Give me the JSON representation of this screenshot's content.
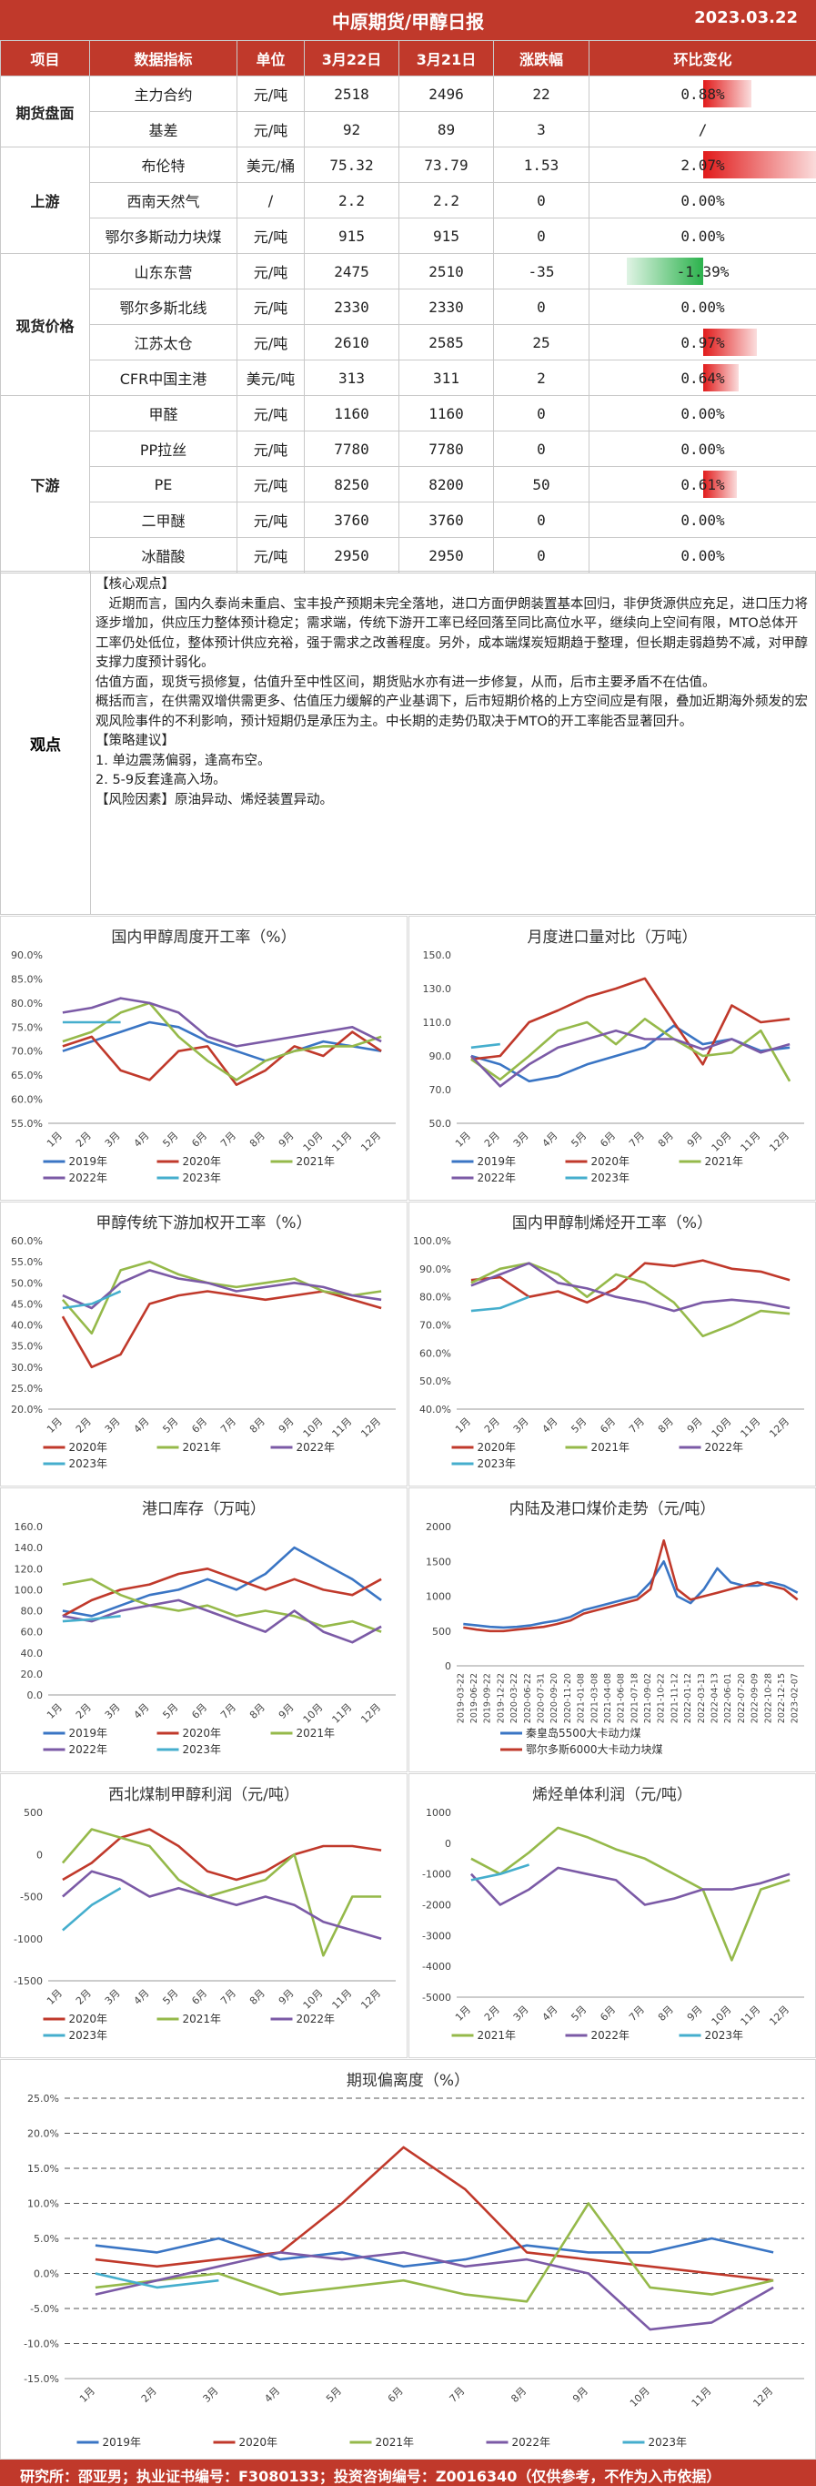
{
  "header": {
    "title": "中原期货/甲醇日报",
    "date": "2023.03.22"
  },
  "table": {
    "columns": [
      "项目",
      "数据指标",
      "单位",
      "3月22日",
      "3月21日",
      "涨跌幅",
      "环比变化"
    ],
    "groups": [
      {
        "name": "期货盘面",
        "rows": [
          {
            "indicator": "主力合约",
            "unit": "元/吨",
            "d1": "2518",
            "d2": "2496",
            "diff": "22",
            "pct": "0.88%",
            "pct_value": 0.88
          },
          {
            "indicator": "基差",
            "unit": "元/吨",
            "d1": "92",
            "d2": "89",
            "diff": "3",
            "pct": "/",
            "pct_value": 0
          }
        ]
      },
      {
        "name": "上游",
        "rows": [
          {
            "indicator": "布伦特",
            "unit": "美元/桶",
            "d1": "75.32",
            "d2": "73.79",
            "diff": "1.53",
            "pct": "2.07%",
            "pct_value": 2.07
          },
          {
            "indicator": "西南天然气",
            "unit": "/",
            "d1": "2.2",
            "d2": "2.2",
            "diff": "0",
            "pct": "0.00%",
            "pct_value": 0
          },
          {
            "indicator": "鄂尔多斯动力块煤",
            "unit": "元/吨",
            "d1": "915",
            "d2": "915",
            "diff": "0",
            "pct": "0.00%",
            "pct_value": 0
          }
        ]
      },
      {
        "name": "现货价格",
        "rows": [
          {
            "indicator": "山东东营",
            "unit": "元/吨",
            "d1": "2475",
            "d2": "2510",
            "diff": "-35",
            "pct": "-1.39%",
            "pct_value": -1.39
          },
          {
            "indicator": "鄂尔多斯北线",
            "unit": "元/吨",
            "d1": "2330",
            "d2": "2330",
            "diff": "0",
            "pct": "0.00%",
            "pct_value": 0
          },
          {
            "indicator": "江苏太仓",
            "unit": "元/吨",
            "d1": "2610",
            "d2": "2585",
            "diff": "25",
            "pct": "0.97%",
            "pct_value": 0.97
          },
          {
            "indicator": "CFR中国主港",
            "unit": "美元/吨",
            "d1": "313",
            "d2": "311",
            "diff": "2",
            "pct": "0.64%",
            "pct_value": 0.64
          }
        ]
      },
      {
        "name": "下游",
        "rows": [
          {
            "indicator": "甲醛",
            "unit": "元/吨",
            "d1": "1160",
            "d2": "1160",
            "diff": "0",
            "pct": "0.00%",
            "pct_value": 0
          },
          {
            "indicator": "PP拉丝",
            "unit": "元/吨",
            "d1": "7780",
            "d2": "7780",
            "diff": "0",
            "pct": "0.00%",
            "pct_value": 0
          },
          {
            "indicator": "PE",
            "unit": "元/吨",
            "d1": "8250",
            "d2": "8200",
            "diff": "50",
            "pct": "0.61%",
            "pct_value": 0.61
          },
          {
            "indicator": "二甲醚",
            "unit": "元/吨",
            "d1": "3760",
            "d2": "3760",
            "diff": "0",
            "pct": "0.00%",
            "pct_value": 0
          },
          {
            "indicator": "冰醋酸",
            "unit": "元/吨",
            "d1": "2950",
            "d2": "2950",
            "diff": "0",
            "pct": "0.00%",
            "pct_value": 0
          }
        ]
      }
    ]
  },
  "view": {
    "label": "观点",
    "paragraphs": [
      "【核心观点】",
      "　近期而言，国内久泰尚未重启、宝丰投产预期未完全落地，进口方面伊朗装置基本回归，非伊货源供应充足，进口压力将逐步增加，供应压力整体预计稳定；需求端，传统下游开工率已经回落至同比高位水平，继续向上空间有限，MTO总体开工率仍处低位，整体预计供应充裕，强于需求之改善程度。另外，成本端煤炭短期趋于整理，但长期走弱趋势不减，对甲醇支撑力度预计弱化。",
      "估值方面，现货亏损修复，估值升至中性区间，期货贴水亦有进一步修复，从而，后市主要矛盾不在估值。",
      "概括而言，在供需双增供需更多、估值压力缓解的产业基调下，后市短期价格的上方空间应是有限，叠加近期海外频发的宏观风险事件的不利影响，预计短期仍是承压为主。中长期的走势仍取决于MTO的开工率能否显著回升。",
      "【策略建议】",
      "1. 单边震荡偏弱，逢高布空。",
      "2. 5-9反套逢高入场。",
      "【风险因素】原油异动、烯烃装置异动。"
    ]
  },
  "colors": {
    "y2019": "#3a75c4",
    "y2020": "#c0392b",
    "y2021": "#95b94a",
    "y2022": "#7b5aa6",
    "y2023": "#45aecd",
    "header": "#c0392b",
    "up": "#e11b1b",
    "down": "#2bb24c"
  },
  "month_labels": [
    "1月",
    "2月",
    "3月",
    "4月",
    "5月",
    "6月",
    "7月",
    "8月",
    "9月",
    "10月",
    "11月",
    "12月"
  ],
  "charts": [
    {
      "title": "国内甲醇周度开工率（%）",
      "type": "line",
      "y_ticks": [
        "90.0%",
        "85.0%",
        "80.0%",
        "75.0%",
        "70.0%",
        "65.0%",
        "60.0%",
        "55.0%"
      ],
      "ylim": [
        55,
        90
      ],
      "legend": [
        "2019年",
        "2020年",
        "2021年",
        "2022年",
        "2023年"
      ],
      "series": [
        {
          "name": "2019年",
          "values": [
            70,
            72,
            74,
            76,
            75,
            72,
            70,
            68,
            70,
            72,
            71,
            70
          ]
        },
        {
          "name": "2020年",
          "values": [
            71,
            73,
            66,
            64,
            70,
            71,
            63,
            66,
            71,
            69,
            74,
            70
          ]
        },
        {
          "name": "2021年",
          "values": [
            72,
            74,
            78,
            80,
            73,
            68,
            64,
            68,
            70,
            71,
            71,
            73
          ]
        },
        {
          "name": "2022年",
          "values": [
            78,
            79,
            81,
            80,
            78,
            73,
            71,
            72,
            73,
            74,
            75,
            72
          ]
        },
        {
          "name": "2023年",
          "values": [
            76,
            76,
            76
          ]
        }
      ]
    },
    {
      "title": "月度进口量对比（万吨）",
      "type": "line",
      "y_ticks": [
        "150.0",
        "130.0",
        "110.0",
        "90.0",
        "70.0",
        "50.0"
      ],
      "ylim": [
        50,
        150
      ],
      "legend": [
        "2019年",
        "2020年",
        "2021年",
        "2022年",
        "2023年"
      ],
      "series": [
        {
          "name": "2019年",
          "values": [
            90,
            85,
            75,
            78,
            85,
            90,
            95,
            108,
            97,
            100,
            93,
            95
          ]
        },
        {
          "name": "2020年",
          "values": [
            88,
            90,
            110,
            117,
            125,
            130,
            136,
            110,
            85,
            120,
            110,
            112
          ]
        },
        {
          "name": "2021年",
          "values": [
            88,
            76,
            90,
            105,
            110,
            97,
            112,
            100,
            90,
            92,
            105,
            75
          ]
        },
        {
          "name": "2022年",
          "values": [
            90,
            72,
            85,
            95,
            100,
            105,
            100,
            100,
            94,
            100,
            92,
            97
          ]
        },
        {
          "name": "2023年",
          "values": [
            95,
            97
          ]
        }
      ]
    },
    {
      "title": "甲醇传统下游加权开工率（%）",
      "type": "line",
      "y_ticks": [
        "60.0%",
        "55.0%",
        "50.0%",
        "45.0%",
        "40.0%",
        "35.0%",
        "30.0%",
        "25.0%",
        "20.0%"
      ],
      "ylim": [
        20,
        60
      ],
      "legend": [
        "2020年",
        "2021年",
        "2022年",
        "2023年"
      ],
      "series": [
        {
          "name": "2020年",
          "values": [
            42,
            30,
            33,
            45,
            47,
            48,
            47,
            46,
            47,
            48,
            46,
            44
          ]
        },
        {
          "name": "2021年",
          "values": [
            46,
            38,
            53,
            55,
            52,
            50,
            49,
            50,
            51,
            48,
            47,
            48
          ]
        },
        {
          "name": "2022年",
          "values": [
            47,
            44,
            50,
            53,
            51,
            50,
            48,
            49,
            50,
            49,
            47,
            46
          ]
        },
        {
          "name": "2023年",
          "values": [
            44,
            45,
            48
          ]
        }
      ]
    },
    {
      "title": "国内甲醇制烯烃开工率（%）",
      "type": "line",
      "y_ticks": [
        "100.0%",
        "90.0%",
        "80.0%",
        "70.0%",
        "60.0%",
        "50.0%",
        "40.0%"
      ],
      "ylim": [
        40,
        100
      ],
      "legend": [
        "2020年",
        "2021年",
        "2022年",
        "2023年"
      ],
      "series": [
        {
          "name": "2020年",
          "values": [
            86,
            87,
            80,
            82,
            78,
            83,
            92,
            91,
            93,
            90,
            89,
            86
          ]
        },
        {
          "name": "2021年",
          "values": [
            85,
            90,
            92,
            88,
            80,
            88,
            85,
            78,
            66,
            70,
            75,
            74
          ]
        },
        {
          "name": "2022年",
          "values": [
            84,
            88,
            92,
            85,
            83,
            80,
            78,
            75,
            78,
            79,
            78,
            76
          ]
        },
        {
          "name": "2023年",
          "values": [
            75,
            76,
            80
          ]
        }
      ]
    },
    {
      "title": "港口库存（万吨）",
      "type": "line",
      "y_ticks": [
        "160.0",
        "140.0",
        "120.0",
        "100.0",
        "80.0",
        "60.0",
        "40.0",
        "20.0",
        "0.0"
      ],
      "ylim": [
        0,
        160
      ],
      "legend": [
        "2019年",
        "2020年",
        "2021年",
        "2022年",
        "2023年"
      ],
      "series": [
        {
          "name": "2019年",
          "values": [
            80,
            75,
            85,
            95,
            100,
            110,
            100,
            115,
            140,
            125,
            110,
            90
          ]
        },
        {
          "name": "2020年",
          "values": [
            75,
            90,
            100,
            105,
            115,
            120,
            110,
            100,
            110,
            100,
            95,
            110
          ]
        },
        {
          "name": "2021年",
          "values": [
            105,
            110,
            95,
            85,
            80,
            85,
            75,
            80,
            75,
            65,
            70,
            60
          ]
        },
        {
          "name": "2022年",
          "values": [
            75,
            70,
            80,
            85,
            90,
            80,
            70,
            60,
            80,
            60,
            50,
            65
          ]
        },
        {
          "name": "2023年",
          "values": [
            70,
            72,
            75
          ]
        }
      ]
    },
    {
      "title": "内陆及港口煤价走势（元/吨）",
      "type": "line",
      "y_ticks": [
        "2000",
        "1500",
        "1000",
        "500",
        "0"
      ],
      "ylim": [
        0,
        2000
      ],
      "x_ticks": [
        "2019-03-22",
        "2019-06-22",
        "2019-09-22",
        "2019-12-22",
        "2020-03-22",
        "2020-06-22",
        "2020-07-31",
        "2020-09-20",
        "2020-11-20",
        "2021-01-08",
        "2021-03-08",
        "2021-04-08",
        "2021-06-08",
        "2021-07-18",
        "2021-09-02",
        "2021-10-22",
        "2021-11-12",
        "2022-01-12",
        "2022-03-13",
        "2022-04-13",
        "2022-06-01",
        "2022-07-20",
        "2022-09-09",
        "2022-10-28",
        "2022-12-15",
        "2023-02-07"
      ],
      "legend": [
        "秦皇岛5500大卡动力煤",
        "鄂尔多斯6000大卡动力块煤"
      ],
      "series": [
        {
          "name": "秦皇岛5500大卡动力煤",
          "values": [
            600,
            580,
            560,
            550,
            560,
            580,
            620,
            650,
            700,
            800,
            850,
            900,
            950,
            1000,
            1200,
            1500,
            1000,
            900,
            1100,
            1400,
            1200,
            1150,
            1150,
            1200,
            1150,
            1050
          ]
        },
        {
          "name": "鄂尔多斯6000大卡动力块煤",
          "values": [
            550,
            520,
            500,
            500,
            520,
            540,
            560,
            600,
            650,
            750,
            800,
            850,
            900,
            950,
            1100,
            1800,
            1100,
            950,
            1000,
            1050,
            1100,
            1150,
            1200,
            1150,
            1100,
            950
          ]
        }
      ]
    },
    {
      "title": "西北煤制甲醇利润（元/吨）",
      "type": "line",
      "y_ticks": [
        "500",
        "0",
        "-500",
        "-1000",
        "-1500"
      ],
      "ylim": [
        -1500,
        500
      ],
      "legend": [
        "2020年",
        "2021年",
        "2022年",
        "2023年"
      ],
      "series": [
        {
          "name": "2020年",
          "values": [
            -300,
            -100,
            200,
            300,
            100,
            -200,
            -300,
            -200,
            0,
            100,
            100,
            50
          ]
        },
        {
          "name": "2021年",
          "values": [
            -100,
            300,
            200,
            100,
            -300,
            -500,
            -400,
            -300,
            0,
            -1200,
            -500,
            -500
          ]
        },
        {
          "name": "2022年",
          "values": [
            -500,
            -200,
            -300,
            -500,
            -400,
            -500,
            -600,
            -500,
            -600,
            -800,
            -900,
            -1000
          ]
        },
        {
          "name": "2023年",
          "values": [
            -900,
            -600,
            -400
          ]
        }
      ]
    },
    {
      "title": "烯烃单体利润（元/吨）",
      "type": "line",
      "y_ticks": [
        "1000",
        "0",
        "-1000",
        "-2000",
        "-3000",
        "-4000",
        "-5000"
      ],
      "ylim": [
        -5000,
        1000
      ],
      "legend": [
        "2021年",
        "2022年",
        "2023年"
      ],
      "series": [
        {
          "name": "2021年",
          "values": [
            -500,
            -1000,
            -300,
            500,
            200,
            -200,
            -500,
            -1000,
            -1500,
            -3800,
            -1500,
            -1200
          ]
        },
        {
          "name": "2022年",
          "values": [
            -1000,
            -2000,
            -1500,
            -800,
            -1000,
            -1200,
            -2000,
            -1800,
            -1500,
            -1500,
            -1300,
            -1000
          ]
        },
        {
          "name": "2023年",
          "values": [
            -1200,
            -1000,
            -700
          ]
        }
      ]
    },
    {
      "title": "期现偏离度（%）",
      "type": "line",
      "y_ticks": [
        "25.0%",
        "20.0%",
        "15.0%",
        "10.0%",
        "5.0%",
        "0.0%",
        "-5.0%",
        "-10.0%",
        "-15.0%"
      ],
      "ylim": [
        -15,
        25
      ],
      "legend": [
        "2019年",
        "2020年",
        "2021年",
        "2022年",
        "2023年"
      ],
      "series": [
        {
          "name": "2019年",
          "values": [
            4,
            3,
            5,
            2,
            3,
            1,
            2,
            4,
            3,
            3,
            5,
            3
          ]
        },
        {
          "name": "2020年",
          "values": [
            2,
            1,
            2,
            3,
            10,
            18,
            12,
            3,
            2,
            1,
            0,
            -1
          ]
        },
        {
          "name": "2021年",
          "values": [
            -2,
            -1,
            0,
            -3,
            -2,
            -1,
            -3,
            -4,
            10,
            -2,
            -3,
            -1
          ]
        },
        {
          "name": "2022年",
          "values": [
            -3,
            -1,
            1,
            3,
            2,
            3,
            1,
            2,
            0,
            -8,
            -7,
            -2
          ]
        },
        {
          "name": "2023年",
          "values": [
            0,
            -2,
            -1
          ]
        }
      ]
    }
  ],
  "footer": {
    "text": "研究所：邵亚男；执业证书编号：F3080133；投资咨询编号：Z0016340（仅供参考，不作为入市依据）"
  }
}
